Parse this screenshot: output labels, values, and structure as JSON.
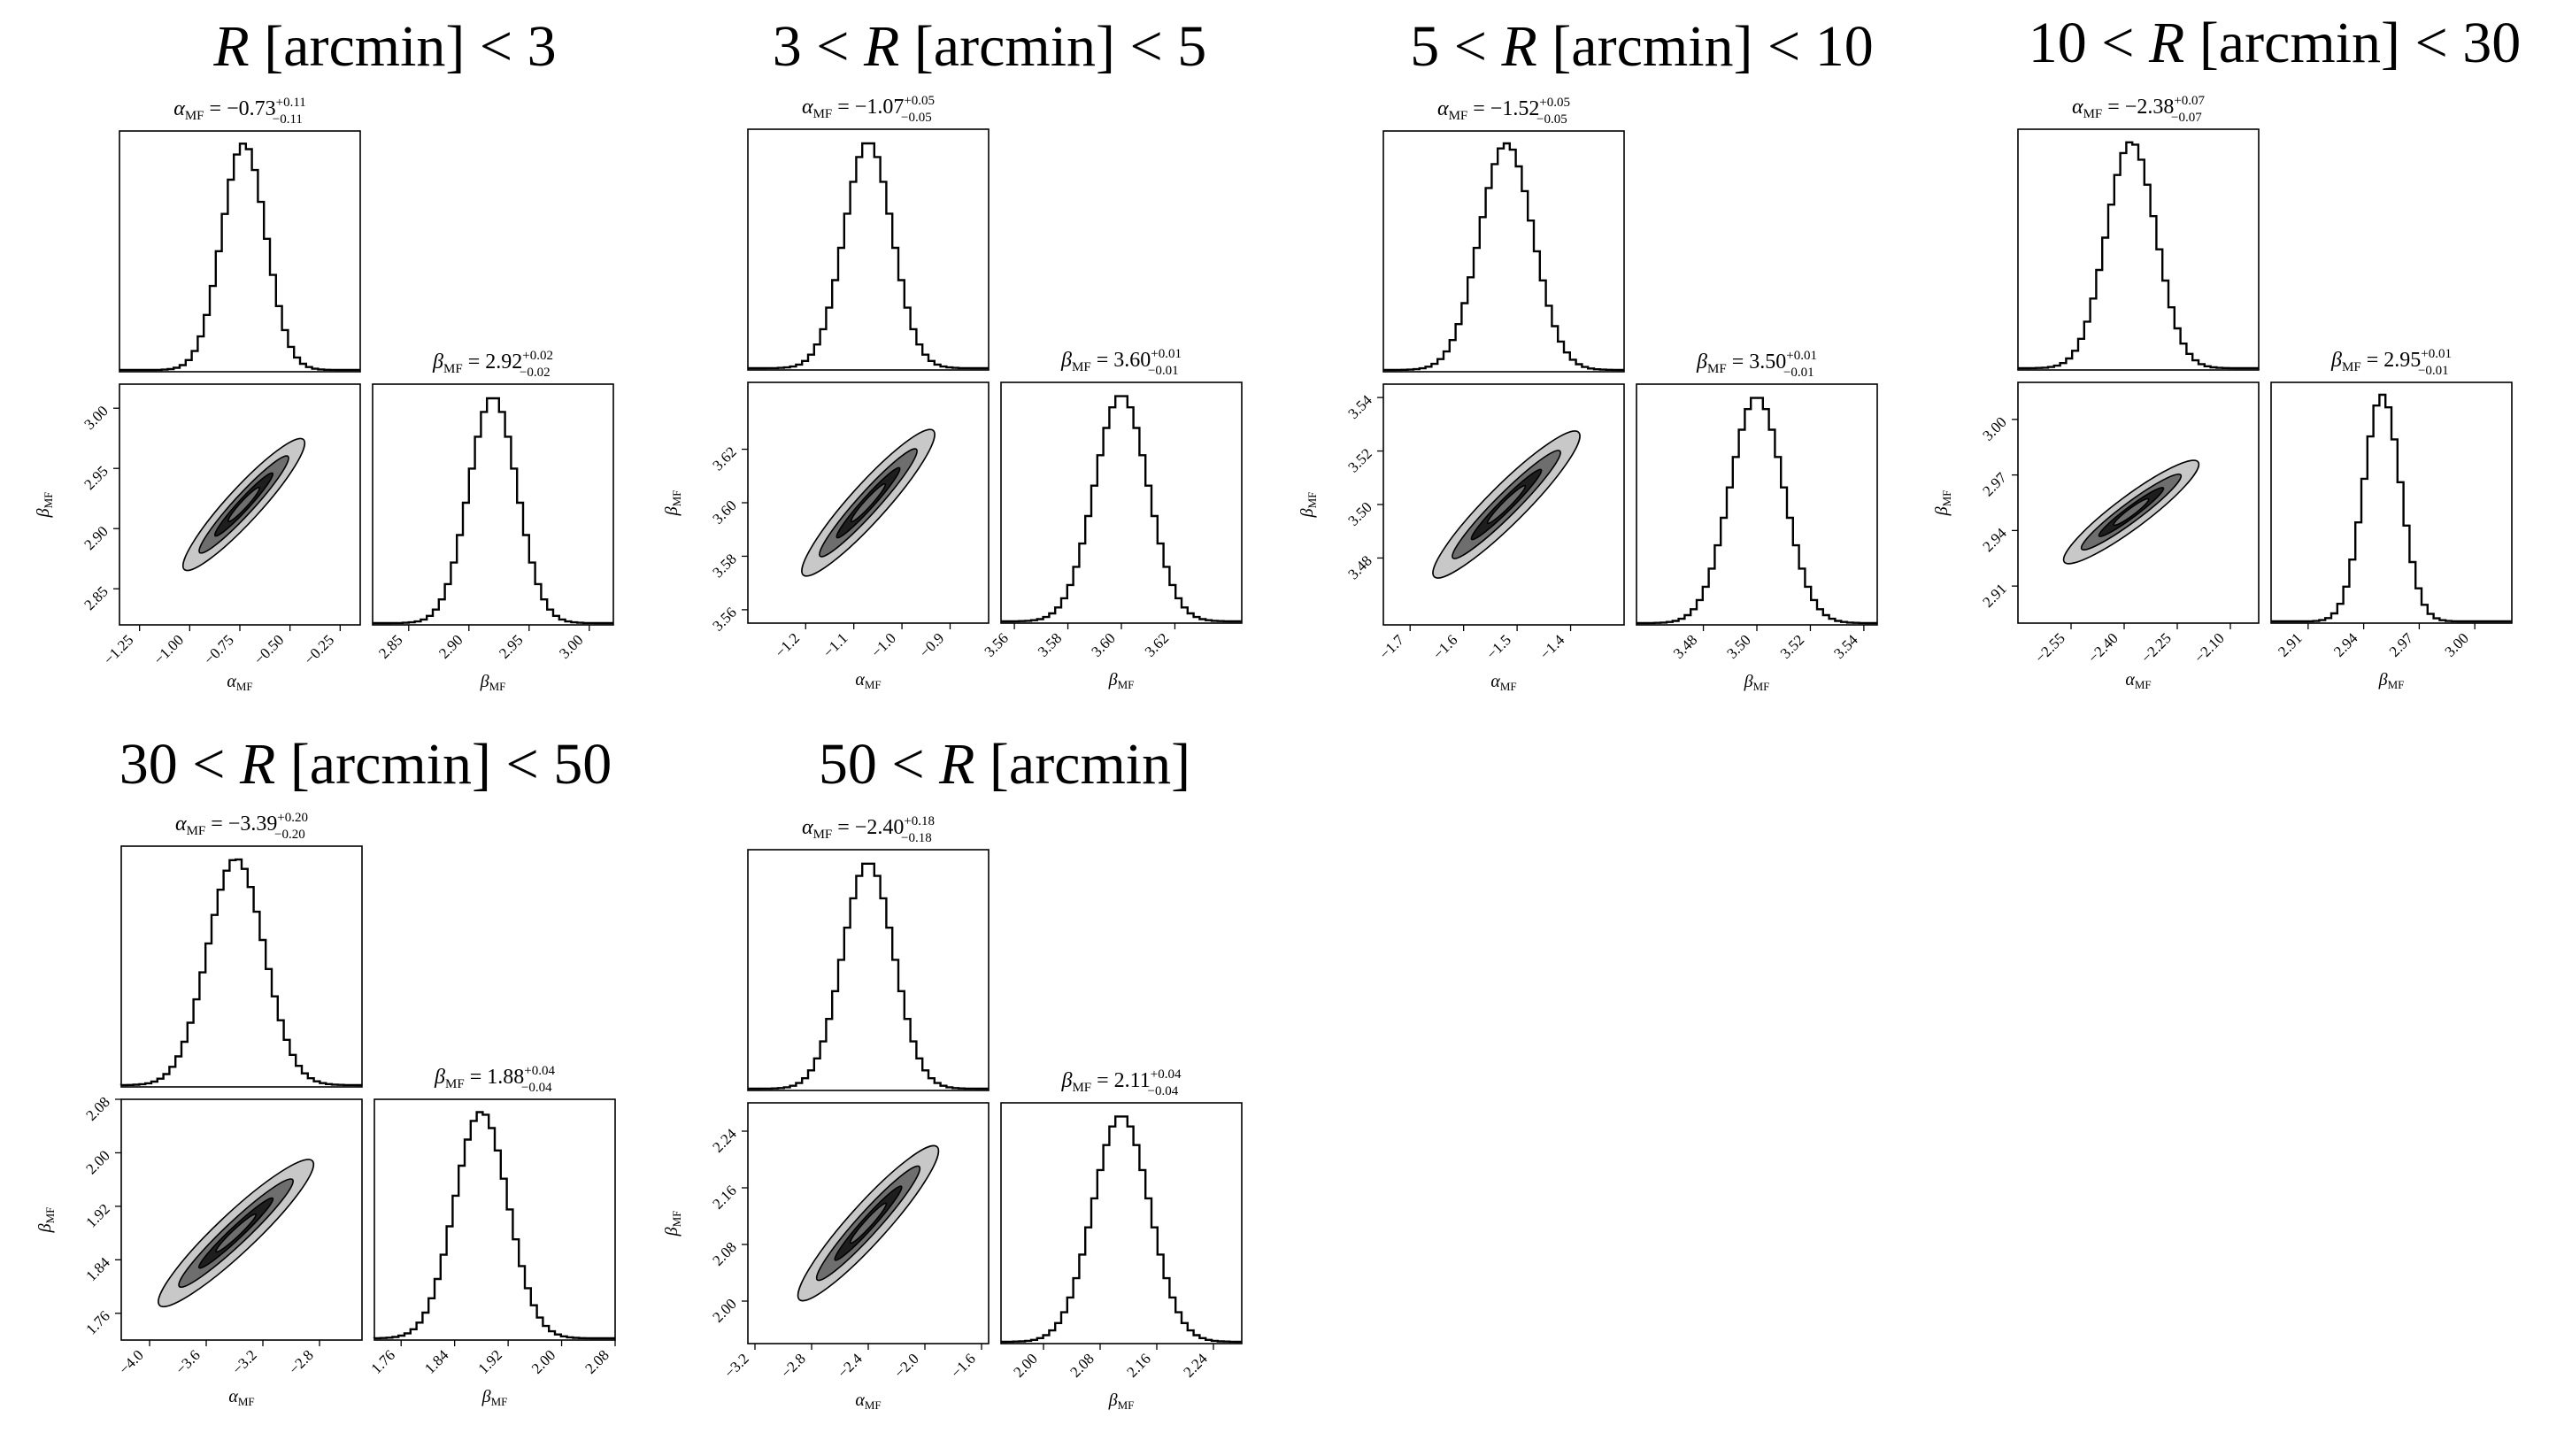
{
  "chart_data": [
    {
      "type": "corner",
      "title": "R [arcmin] < 3",
      "title_parts": {
        "pre": "",
        "post": " [arcmin] < 3"
      },
      "params": [
        {
          "name": "α",
          "sub": "MF",
          "median": -0.73,
          "err_plus": 0.11,
          "err_minus": 0.11,
          "label_text": "= −0.73",
          "sup": "+0.11",
          "sub_err": "−0.11",
          "range": [
            -1.35,
            -0.15
          ],
          "ticks": [
            -1.25,
            -1.0,
            -0.75,
            -0.5,
            -0.25
          ],
          "tick_labels": [
            "−1.25",
            "−1.00",
            "−0.75",
            "−0.50",
            "−0.25"
          ]
        },
        {
          "name": "β",
          "sub": "MF",
          "median": 2.92,
          "err_plus": 0.02,
          "err_minus": 0.02,
          "label_text": "= 2.92",
          "sup": "+0.02",
          "sub_err": "−0.02",
          "range": [
            2.82,
            3.02
          ],
          "ticks": [
            2.85,
            2.9,
            2.95,
            3.0
          ],
          "tick_labels": [
            "2.85",
            "2.90",
            "2.95",
            "3.00"
          ]
        }
      ]
    },
    {
      "type": "corner",
      "title": "3 < R [arcmin] < 5",
      "title_parts": {
        "pre": "3 < ",
        "post": " [arcmin] < 5"
      },
      "params": [
        {
          "name": "α",
          "sub": "MF",
          "median": -1.07,
          "err_plus": 0.05,
          "err_minus": 0.05,
          "label_text": "= −1.07",
          "sup": "+0.05",
          "sub_err": "−0.05",
          "range": [
            -1.32,
            -0.82
          ],
          "ticks": [
            -1.2,
            -1.1,
            -1.0,
            -0.9
          ],
          "tick_labels": [
            "−1.2",
            "−1.1",
            "−1.0",
            "−0.9"
          ]
        },
        {
          "name": "β",
          "sub": "MF",
          "median": 3.6,
          "err_plus": 0.01,
          "err_minus": 0.01,
          "label_text": "= 3.60",
          "sup": "+0.01",
          "sub_err": "−0.01",
          "range": [
            3.555,
            3.645
          ],
          "ticks": [
            3.56,
            3.58,
            3.6,
            3.62
          ],
          "tick_labels": [
            "3.56",
            "3.58",
            "3.60",
            "3.62"
          ]
        }
      ]
    },
    {
      "type": "corner",
      "title": "5 < R [arcmin] < 10",
      "title_parts": {
        "pre": "5 < ",
        "post": " [arcmin] < 10"
      },
      "params": [
        {
          "name": "α",
          "sub": "MF",
          "median": -1.52,
          "err_plus": 0.05,
          "err_minus": 0.05,
          "label_text": "= −1.52",
          "sup": "+0.05",
          "sub_err": "−0.05",
          "range": [
            -1.75,
            -1.3
          ],
          "ticks": [
            -1.7,
            -1.6,
            -1.5,
            -1.4
          ],
          "tick_labels": [
            "−1.7",
            "−1.6",
            "−1.5",
            "−1.4"
          ]
        },
        {
          "name": "β",
          "sub": "MF",
          "median": 3.5,
          "err_plus": 0.01,
          "err_minus": 0.01,
          "label_text": "= 3.50",
          "sup": "+0.01",
          "sub_err": "−0.01",
          "range": [
            3.455,
            3.545
          ],
          "ticks": [
            3.48,
            3.5,
            3.52,
            3.54
          ],
          "tick_labels": [
            "3.48",
            "3.50",
            "3.52",
            "3.54"
          ]
        }
      ]
    },
    {
      "type": "corner",
      "title": "10 < R [arcmin] < 30",
      "title_parts": {
        "pre": "10 < ",
        "post": " [arcmin] < 30"
      },
      "params": [
        {
          "name": "α",
          "sub": "MF",
          "median": -2.38,
          "err_plus": 0.07,
          "err_minus": 0.07,
          "label_text": "= −2.38",
          "sup": "+0.07",
          "sub_err": "−0.07",
          "range": [
            -2.7,
            -2.02
          ],
          "ticks": [
            -2.55,
            -2.4,
            -2.25,
            -2.1
          ],
          "tick_labels": [
            "−2.55",
            "−2.40",
            "−2.25",
            "−2.10"
          ]
        },
        {
          "name": "β",
          "sub": "MF",
          "median": 2.95,
          "err_plus": 0.01,
          "err_minus": 0.01,
          "label_text": "= 2.95",
          "sup": "+0.01",
          "sub_err": "−0.01",
          "range": [
            2.89,
            3.02
          ],
          "ticks": [
            2.91,
            2.94,
            2.97,
            3.0
          ],
          "tick_labels": [
            "2.91",
            "2.94",
            "2.97",
            "3.00"
          ]
        }
      ]
    },
    {
      "type": "corner",
      "title": "30 < R [arcmin] < 50",
      "title_parts": {
        "pre": "30 < ",
        "post": " [arcmin] < 50"
      },
      "params": [
        {
          "name": "α",
          "sub": "MF",
          "median": -3.39,
          "err_plus": 0.2,
          "err_minus": 0.2,
          "label_text": "= −3.39",
          "sup": "+0.20",
          "sub_err": "−0.20",
          "range": [
            -4.2,
            -2.5
          ],
          "ticks": [
            -4.0,
            -3.6,
            -3.2,
            -2.8
          ],
          "tick_labels": [
            "−4.0",
            "−3.6",
            "−3.2",
            "−2.8"
          ]
        },
        {
          "name": "β",
          "sub": "MF",
          "median": 1.88,
          "err_plus": 0.04,
          "err_minus": 0.04,
          "label_text": "= 1.88",
          "sup": "+0.04",
          "sub_err": "−0.04",
          "range": [
            1.72,
            2.08
          ],
          "ticks": [
            1.76,
            1.84,
            1.92,
            2.0,
            2.08
          ],
          "tick_labels": [
            "1.76",
            "1.84",
            "1.92",
            "2.00",
            "2.08"
          ]
        }
      ]
    },
    {
      "type": "corner",
      "title": "50 < R [arcmin]",
      "title_parts": {
        "pre": "50 < ",
        "post": " [arcmin]"
      },
      "params": [
        {
          "name": "α",
          "sub": "MF",
          "median": -2.4,
          "err_plus": 0.18,
          "err_minus": 0.18,
          "label_text": "= −2.40",
          "sup": "+0.18",
          "sub_err": "−0.18",
          "range": [
            -3.25,
            -1.55
          ],
          "ticks": [
            -3.2,
            -2.8,
            -2.4,
            -2.0,
            -1.6
          ],
          "tick_labels": [
            "−3.2",
            "−2.8",
            "−2.4",
            "−2.0",
            "−1.6"
          ]
        },
        {
          "name": "β",
          "sub": "MF",
          "median": 2.11,
          "err_plus": 0.04,
          "err_minus": 0.04,
          "label_text": "= 2.11",
          "sup": "+0.04",
          "sub_err": "−0.04",
          "range": [
            1.94,
            2.28
          ],
          "ticks": [
            2.0,
            2.08,
            2.16,
            2.24
          ],
          "tick_labels": [
            "2.00",
            "2.08",
            "2.16",
            "2.24"
          ]
        }
      ]
    }
  ],
  "colors": {
    "line": "#000000",
    "contour_outer": "#c8c8c8",
    "contour_mid": "#6e6e6e",
    "contour_inner": "#1e1e1e",
    "background": "#ffffff"
  }
}
